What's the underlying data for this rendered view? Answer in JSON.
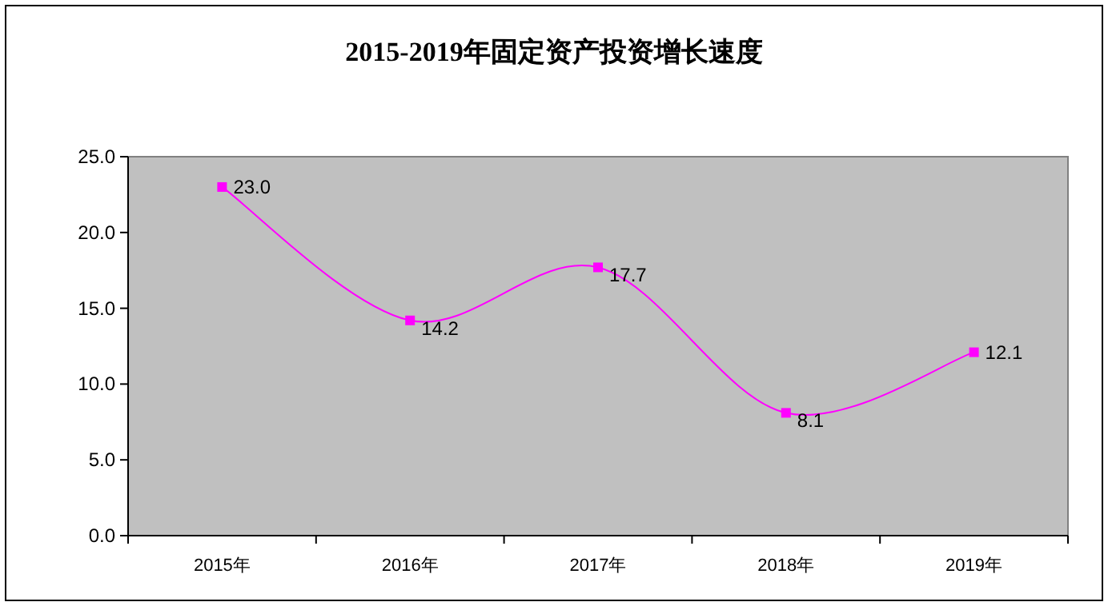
{
  "chart_data": {
    "type": "line",
    "title": "2015-2019年固定资产投资增长速度",
    "categories": [
      "2015年",
      "2016年",
      "2017年",
      "2018年",
      "2019年"
    ],
    "series": [
      {
        "color": "#ff00ff",
        "values": [
          23.0,
          14.2,
          17.7,
          8.1,
          12.1
        ],
        "value_labels": [
          "23.0",
          "14.2",
          "17.7",
          "8.1",
          "12.1"
        ]
      }
    ],
    "ylim": [
      0,
      25
    ],
    "yticks": [
      {
        "value": 0,
        "label": "0.0"
      },
      {
        "value": 5,
        "label": "5.0"
      },
      {
        "value": 10,
        "label": "10.0"
      },
      {
        "value": 15,
        "label": "15.0"
      },
      {
        "value": 20,
        "label": "20.0"
      },
      {
        "value": 25,
        "label": "25.0"
      }
    ],
    "marker": "square",
    "grid": false
  }
}
